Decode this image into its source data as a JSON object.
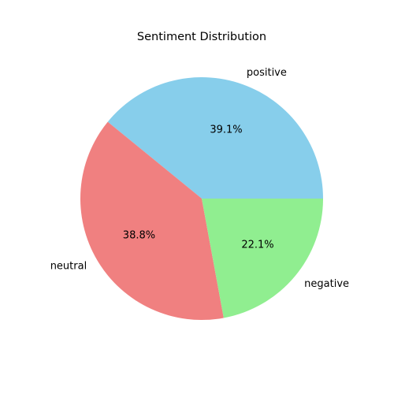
{
  "chart_data": {
    "type": "pie",
    "title": "Sentiment Distribution",
    "start_angle_deg": 0,
    "direction": "counterclockwise",
    "slices": [
      {
        "label": "positive",
        "value": 39.1,
        "pct_label": "39.1%",
        "color": "#87CEEB"
      },
      {
        "label": "neutral",
        "value": 38.8,
        "pct_label": "38.8%",
        "color": "#F08080"
      },
      {
        "label": "negative",
        "value": 22.1,
        "pct_label": "22.1%",
        "color": "#90EE90"
      }
    ]
  }
}
